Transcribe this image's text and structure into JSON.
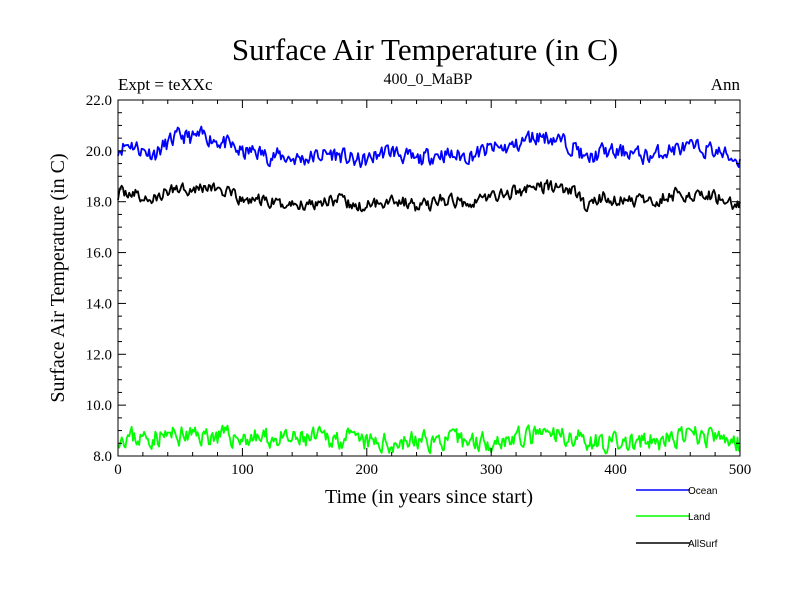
{
  "chart_data": {
    "type": "line",
    "title": "Surface Air Temperature (in C)",
    "subtitle": "400_0_MaBP",
    "expt_label": "Expt = teXXc",
    "season_label": "Ann",
    "xlabel": "Time (in years since start)",
    "ylabel": "Surface Air Temperature (in C)",
    "xlim": [
      0,
      500
    ],
    "ylim": [
      8.0,
      22.0
    ],
    "x_ticks": [
      0,
      100,
      200,
      300,
      400,
      500
    ],
    "x_tick_labels": [
      "0",
      "100",
      "200",
      "300",
      "400",
      "500"
    ],
    "y_ticks": [
      8.0,
      10.0,
      12.0,
      14.0,
      16.0,
      18.0,
      20.0,
      22.0
    ],
    "y_tick_labels": [
      "8.0",
      "10.0",
      "12.0",
      "14.0",
      "16.0",
      "18.0",
      "20.0",
      "22.0"
    ],
    "grid": false,
    "legend_position": "bottom-right, below plot",
    "series": [
      {
        "name": "Ocean",
        "color": "#0000ff",
        "years": 500,
        "anchors_x": [
          0,
          10,
          20,
          30,
          40,
          50,
          60,
          70,
          80,
          90,
          100,
          110,
          120,
          130,
          140,
          150,
          160,
          170,
          180,
          190,
          200,
          210,
          220,
          230,
          240,
          250,
          260,
          270,
          280,
          290,
          300,
          310,
          320,
          330,
          340,
          350,
          360,
          370,
          375,
          380,
          390,
          400,
          410,
          420,
          430,
          440,
          450,
          460,
          470,
          480,
          490,
          500
        ],
        "anchors_y": [
          20.1,
          20.3,
          20.0,
          19.9,
          20.3,
          20.6,
          20.5,
          20.6,
          20.4,
          20.2,
          19.9,
          20.0,
          19.8,
          19.8,
          19.7,
          19.7,
          19.8,
          19.9,
          19.8,
          19.6,
          19.6,
          19.9,
          20.0,
          19.8,
          19.6,
          19.8,
          19.9,
          19.8,
          19.8,
          19.9,
          20.1,
          20.1,
          20.2,
          20.5,
          20.6,
          20.5,
          20.3,
          20.1,
          19.6,
          19.7,
          20.0,
          19.9,
          20.0,
          19.8,
          19.8,
          20.0,
          20.1,
          20.1,
          20.1,
          20.0,
          19.8,
          19.6
        ],
        "noise_amplitude": 0.45,
        "seed": 11
      },
      {
        "name": "Land",
        "color": "#00ff00",
        "years": 500,
        "anchors_x": [
          0,
          20,
          40,
          60,
          80,
          100,
          120,
          140,
          160,
          180,
          200,
          220,
          240,
          260,
          280,
          300,
          320,
          340,
          360,
          380,
          400,
          420,
          440,
          460,
          480,
          500
        ],
        "anchors_y": [
          8.8,
          8.7,
          8.8,
          8.8,
          8.8,
          8.7,
          8.7,
          8.6,
          8.7,
          8.7,
          8.5,
          8.5,
          8.6,
          8.6,
          8.6,
          8.6,
          8.7,
          8.8,
          8.8,
          8.6,
          8.5,
          8.5,
          8.6,
          8.8,
          8.7,
          8.5
        ],
        "noise_amplitude": 0.55,
        "seed": 23
      },
      {
        "name": "AllSurf",
        "color": "#000000",
        "years": 500,
        "anchors_x": [
          0,
          10,
          20,
          30,
          40,
          50,
          60,
          70,
          80,
          90,
          100,
          110,
          120,
          130,
          140,
          150,
          160,
          170,
          180,
          190,
          200,
          210,
          220,
          230,
          240,
          250,
          260,
          270,
          280,
          290,
          300,
          310,
          320,
          330,
          340,
          350,
          360,
          370,
          375,
          380,
          390,
          400,
          410,
          420,
          430,
          440,
          450,
          460,
          470,
          480,
          490,
          500
        ],
        "anchors_y": [
          18.3,
          18.4,
          18.1,
          18.1,
          18.4,
          18.6,
          18.5,
          18.6,
          18.5,
          18.3,
          18.0,
          18.1,
          18.0,
          17.9,
          17.9,
          17.9,
          18.0,
          18.1,
          18.0,
          17.8,
          17.8,
          18.0,
          18.1,
          18.0,
          17.8,
          17.9,
          18.1,
          18.0,
          18.0,
          18.1,
          18.2,
          18.3,
          18.4,
          18.5,
          18.6,
          18.6,
          18.5,
          18.3,
          17.8,
          17.9,
          18.2,
          18.0,
          18.1,
          18.0,
          18.0,
          18.2,
          18.3,
          18.3,
          18.3,
          18.2,
          18.0,
          17.9
        ],
        "noise_amplitude": 0.35,
        "seed": 37
      }
    ]
  }
}
